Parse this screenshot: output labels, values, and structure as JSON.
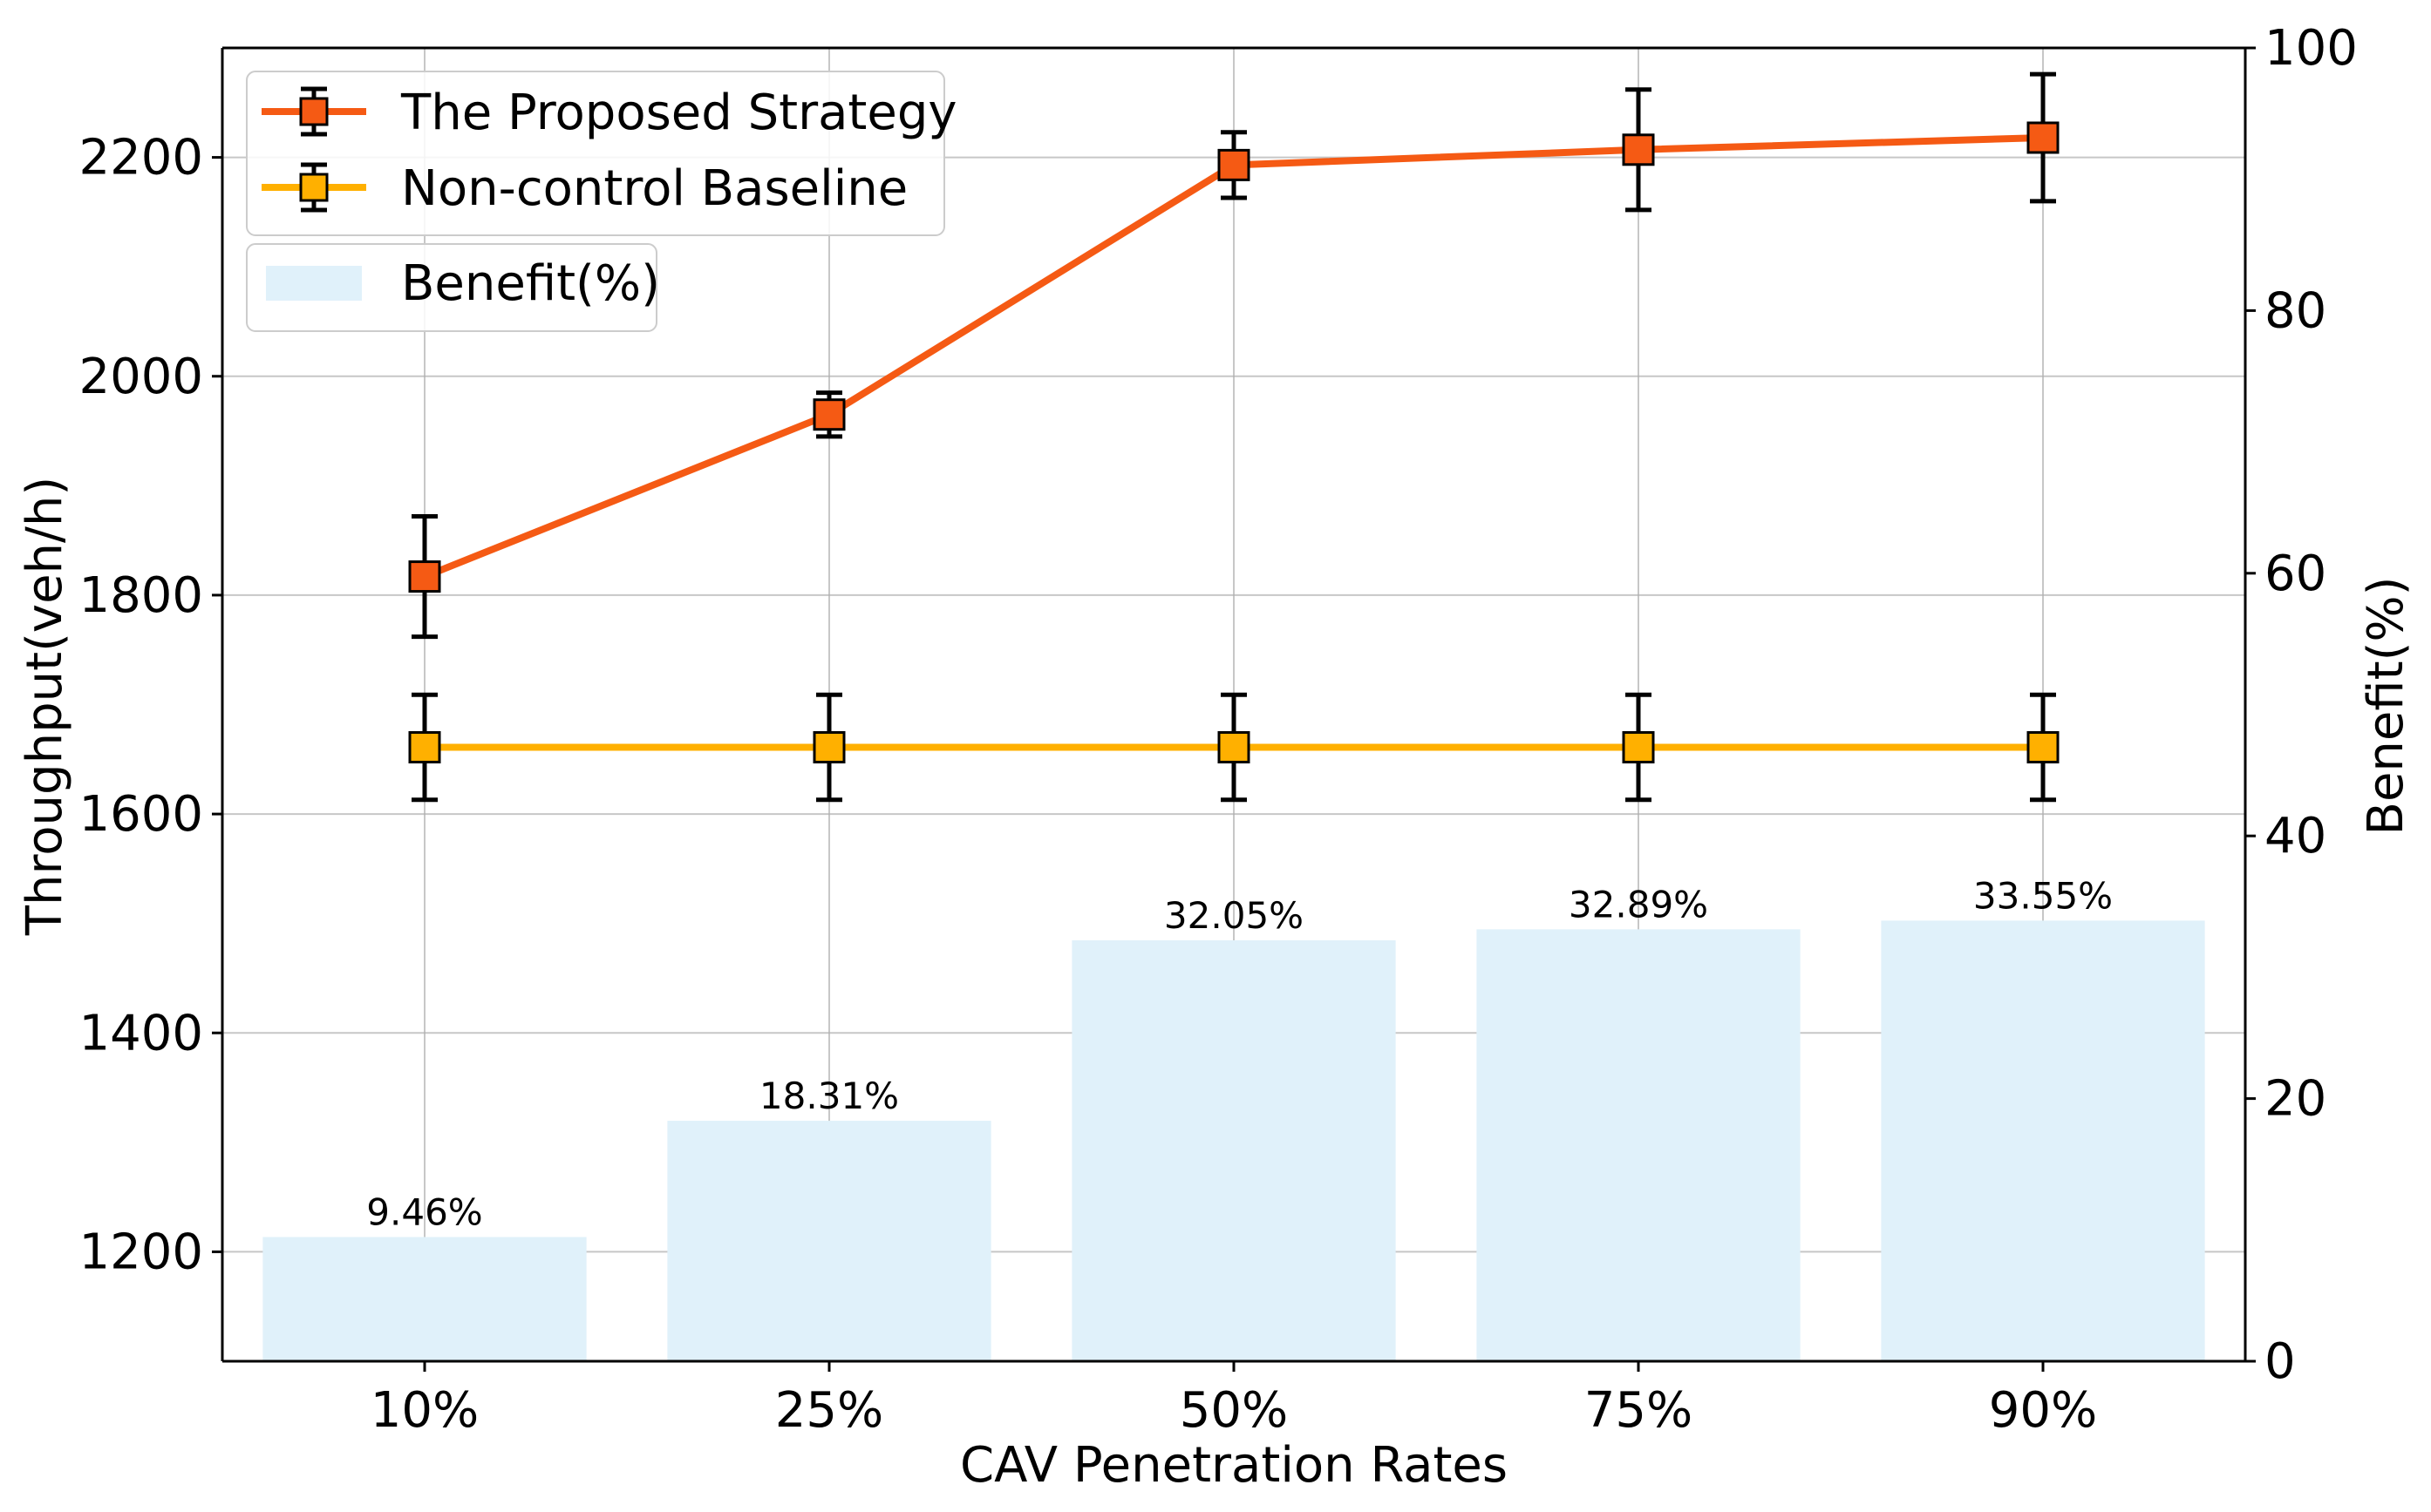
{
  "chart_data": {
    "type": "bar+line",
    "categories": [
      "10%",
      "25%",
      "50%",
      "75%",
      "90%"
    ],
    "xlabel": "CAV Penetration Rates",
    "ylabel_left": "Throughput(veh/h)",
    "ylabel_right": "Benefit(%)",
    "ylim_left": [
      1100,
      2300
    ],
    "ylim_right": [
      0,
      100
    ],
    "yticks_left": [
      1200,
      1400,
      1600,
      1800,
      2000,
      2200
    ],
    "yticks_right": [
      0,
      20,
      40,
      60,
      80,
      100
    ],
    "grid": true,
    "legend_position": "top-left",
    "series": [
      {
        "name": "The Proposed Strategy",
        "kind": "line",
        "axis": "left",
        "color": "#F55A14",
        "marker_color": "#F55A14",
        "values": [
          1817,
          1965,
          2193,
          2207,
          2218
        ],
        "error": [
          55,
          20,
          30,
          55,
          58
        ]
      },
      {
        "name": "Non-control Baseline",
        "kind": "line",
        "axis": "left",
        "color": "#FFB000",
        "marker_color": "#FFB000",
        "values": [
          1661,
          1661,
          1661,
          1661,
          1661
        ],
        "error": [
          48,
          48,
          48,
          48,
          48
        ]
      },
      {
        "name": "Benefit(%)",
        "kind": "bar",
        "axis": "right",
        "color": "#E0F1FA",
        "values": [
          9.46,
          18.31,
          32.05,
          32.89,
          33.55
        ],
        "labels": [
          "9.46%",
          "18.31%",
          "32.05%",
          "32.89%",
          "33.55%"
        ]
      }
    ]
  }
}
